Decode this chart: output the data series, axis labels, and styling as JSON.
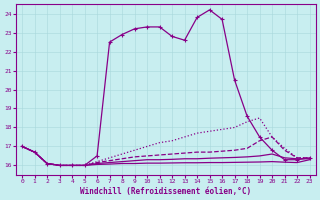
{
  "xlabel": "Windchill (Refroidissement éolien,°C)",
  "background_color": "#c8eef0",
  "line_color": "#880088",
  "xlim": [
    -0.5,
    23.5
  ],
  "ylim": [
    15.5,
    24.5
  ],
  "yticks": [
    16,
    17,
    18,
    19,
    20,
    21,
    22,
    23,
    24
  ],
  "xticks": [
    0,
    1,
    2,
    3,
    4,
    5,
    6,
    7,
    8,
    9,
    10,
    11,
    12,
    13,
    14,
    15,
    16,
    17,
    18,
    19,
    20,
    21,
    22,
    23
  ],
  "lines": [
    {
      "x": [
        0,
        1,
        2,
        3,
        4,
        5,
        6,
        7,
        8,
        9,
        10,
        11,
        12,
        13,
        14,
        15,
        16,
        17,
        18,
        19,
        20,
        21,
        22,
        23
      ],
      "y": [
        17.0,
        16.7,
        16.1,
        16.0,
        16.0,
        16.0,
        16.5,
        22.5,
        22.9,
        23.2,
        23.3,
        23.3,
        22.8,
        22.6,
        23.8,
        24.2,
        23.7,
        20.5,
        18.6,
        17.5,
        16.8,
        16.3,
        16.3,
        16.4
      ],
      "style": "-",
      "marker": "+"
    },
    {
      "x": [
        0,
        1,
        2,
        3,
        4,
        5,
        6,
        7,
        8,
        9,
        10,
        11,
        12,
        13,
        14,
        15,
        16,
        17,
        18,
        19,
        20,
        21,
        22,
        23
      ],
      "y": [
        17.0,
        16.7,
        16.1,
        16.0,
        16.0,
        16.0,
        16.2,
        16.4,
        16.6,
        16.8,
        17.0,
        17.2,
        17.3,
        17.5,
        17.7,
        17.8,
        17.9,
        18.0,
        18.3,
        18.5,
        17.5,
        16.9,
        16.4,
        16.4
      ],
      "style": ":",
      "marker": null
    },
    {
      "x": [
        0,
        1,
        2,
        3,
        4,
        5,
        6,
        7,
        8,
        9,
        10,
        11,
        12,
        13,
        14,
        15,
        16,
        17,
        18,
        19,
        20,
        21,
        22,
        23
      ],
      "y": [
        17.0,
        16.7,
        16.1,
        16.0,
        16.0,
        16.0,
        16.15,
        16.25,
        16.35,
        16.45,
        16.5,
        16.55,
        16.6,
        16.65,
        16.7,
        16.7,
        16.75,
        16.8,
        16.9,
        17.3,
        17.5,
        16.8,
        16.4,
        16.4
      ],
      "style": "--",
      "marker": null
    },
    {
      "x": [
        0,
        1,
        2,
        3,
        4,
        5,
        6,
        7,
        8,
        9,
        10,
        11,
        12,
        13,
        14,
        15,
        16,
        17,
        18,
        19,
        20,
        21,
        22,
        23
      ],
      "y": [
        17.0,
        16.7,
        16.1,
        16.0,
        16.0,
        16.0,
        16.1,
        16.15,
        16.2,
        16.25,
        16.3,
        16.3,
        16.32,
        16.35,
        16.35,
        16.38,
        16.4,
        16.42,
        16.45,
        16.5,
        16.6,
        16.4,
        16.35,
        16.35
      ],
      "style": "-",
      "marker": null
    },
    {
      "x": [
        0,
        1,
        2,
        3,
        4,
        5,
        6,
        7,
        8,
        9,
        10,
        11,
        12,
        13,
        14,
        15,
        16,
        17,
        18,
        19,
        20,
        21,
        22,
        23
      ],
      "y": [
        17.0,
        16.7,
        16.1,
        16.0,
        16.0,
        16.0,
        16.05,
        16.07,
        16.1,
        16.1,
        16.12,
        16.12,
        16.13,
        16.14,
        16.14,
        16.15,
        16.15,
        16.16,
        16.17,
        16.18,
        16.2,
        16.17,
        16.15,
        16.3
      ],
      "style": "-",
      "marker": null
    }
  ]
}
